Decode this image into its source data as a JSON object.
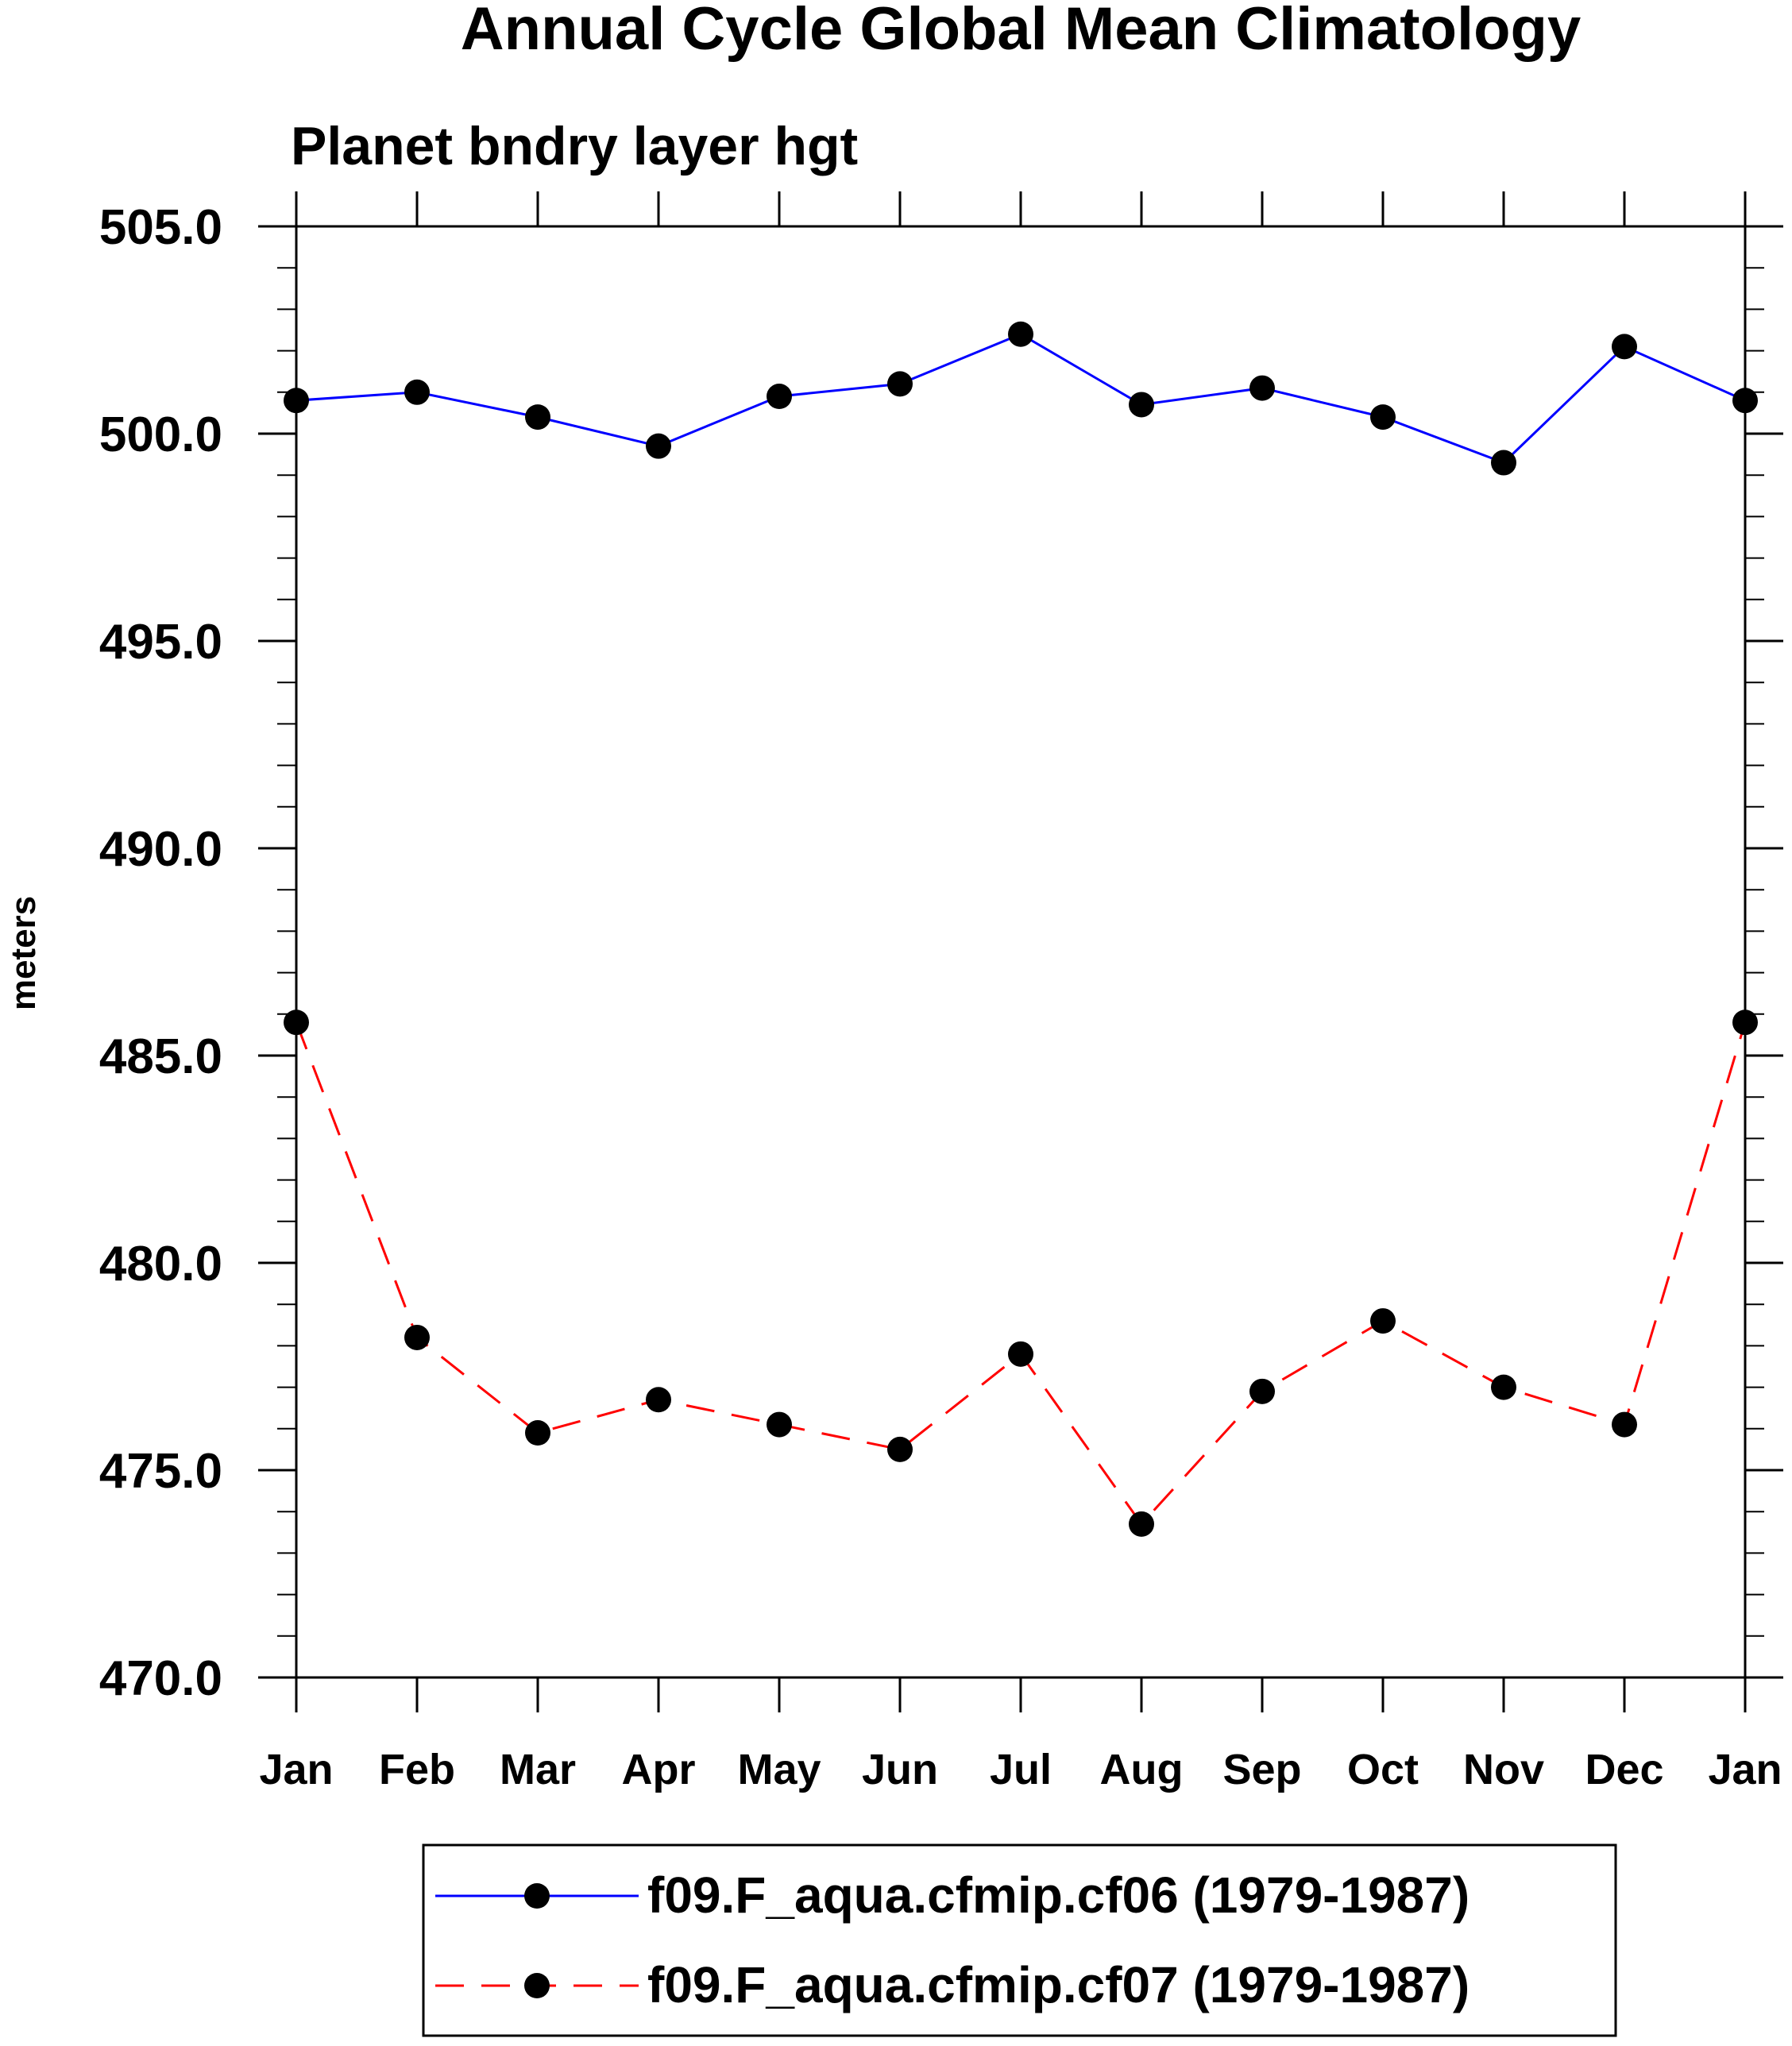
{
  "chart_data": {
    "type": "line",
    "title": "Annual Cycle Global Mean Climatology",
    "subtitle": "Planet bndry layer hgt",
    "xlabel": "",
    "ylabel": "meters",
    "categories": [
      "Jan",
      "Feb",
      "Mar",
      "Apr",
      "May",
      "Jun",
      "Jul",
      "Aug",
      "Sep",
      "Oct",
      "Nov",
      "Dec",
      "Jan"
    ],
    "ylim": [
      470,
      505
    ],
    "yticks": [
      "470.0",
      "475.0",
      "480.0",
      "485.0",
      "490.0",
      "495.0",
      "500.0",
      "505.0"
    ],
    "grid": false,
    "legend_position": "bottom-center",
    "series": [
      {
        "name": "f09.F_aqua.cfmip.cf06 (1979-1987)",
        "color": "#0000ff",
        "line_style": "solid",
        "marker": "circle",
        "values": [
          500.8,
          501.0,
          500.4,
          499.7,
          500.9,
          501.2,
          502.4,
          500.7,
          501.1,
          500.4,
          499.3,
          502.1,
          500.8
        ]
      },
      {
        "name": "f09.F_aqua.cfmip.cf07 (1979-1987)",
        "color": "#ff0000",
        "line_style": "dashed",
        "marker": "circle",
        "values": [
          485.8,
          478.2,
          475.9,
          476.7,
          476.1,
          475.5,
          477.8,
          473.7,
          476.9,
          478.6,
          477.0,
          476.1,
          485.8
        ]
      }
    ]
  }
}
